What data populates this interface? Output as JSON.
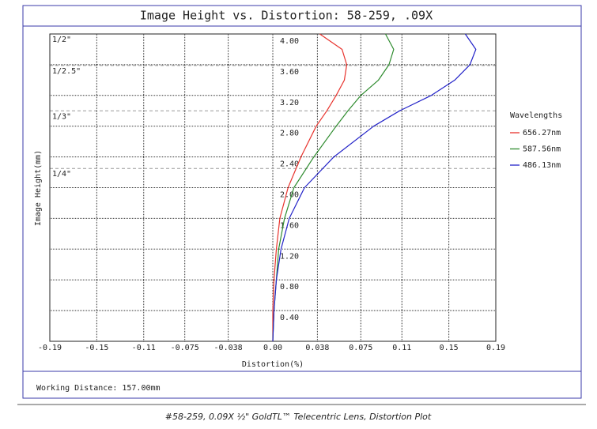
{
  "chart_data": {
    "type": "line",
    "title": "Image Height vs. Distortion: 58-259, .09X",
    "x_label": "Distortion(%)",
    "y_label": "Image Height(mm)",
    "xlim": [
      -0.19,
      0.19
    ],
    "xticks": [
      -0.19,
      {
        "value": -0.15,
        "label": "-0.15"
      },
      {
        "value": -0.11,
        "label": "-0.11"
      },
      -0.075,
      -0.038,
      {
        "value": 0,
        "label": "0.00"
      },
      0.038,
      0.075,
      0.11,
      0.15,
      0.19
    ],
    "ylim": [
      0,
      4
    ],
    "yticks": [
      {
        "value": 0.4,
        "label": "0.40"
      },
      {
        "value": 0.8,
        "label": "0.80"
      },
      {
        "value": 1.2,
        "label": "1.20"
      },
      {
        "value": 1.6,
        "label": "1.60"
      },
      {
        "value": 2,
        "label": "2.00"
      },
      {
        "value": 2.4,
        "label": "2.40"
      },
      {
        "value": 2.8,
        "label": "2.80"
      },
      {
        "value": 3.2,
        "label": "3.20"
      },
      {
        "value": 3.6,
        "label": "3.60"
      },
      {
        "value": 4,
        "label": "4.00"
      }
    ],
    "grid": true,
    "legend_title": "Wavelengths",
    "legend": "right",
    "sensor_lines": [
      {
        "label": "1/2\"",
        "value": 4.0
      },
      {
        "label": "1/2.5\"",
        "value": 3.59
      },
      {
        "label": "1/3\"",
        "value": 3.0
      },
      {
        "label": "1/4\"",
        "value": 2.25
      }
    ],
    "y": [
      0,
      0.4,
      0.8,
      1.2,
      1.6,
      2.0,
      2.4,
      2.8,
      3.0,
      3.2,
      3.4,
      3.6,
      3.8,
      4.0
    ],
    "series": [
      {
        "name": "656.27nm",
        "color": "#e8332d",
        "values": [
          0,
          0,
          0.001,
          0.003,
          0.006,
          0.013,
          0.024,
          0.037,
          0.046,
          0.054,
          0.061,
          0.063,
          0.059,
          0.04
        ]
      },
      {
        "name": "587.56nm",
        "color": "#2e8b2e",
        "values": [
          0,
          0.001,
          0.003,
          0.005,
          0.01,
          0.018,
          0.035,
          0.054,
          0.064,
          0.075,
          0.09,
          0.099,
          0.103,
          0.096
        ]
      },
      {
        "name": "486.13nm",
        "color": "#2323c8",
        "values": [
          0,
          0.001,
          0.003,
          0.007,
          0.014,
          0.027,
          0.052,
          0.086,
          0.108,
          0.135,
          0.155,
          0.168,
          0.173,
          0.164
        ]
      }
    ],
    "footer": "Working Distance: 157.00mm"
  },
  "caption": "#58-259, 0.09X ½\" GoldTL™ Telecentric Lens, Distortion Plot"
}
